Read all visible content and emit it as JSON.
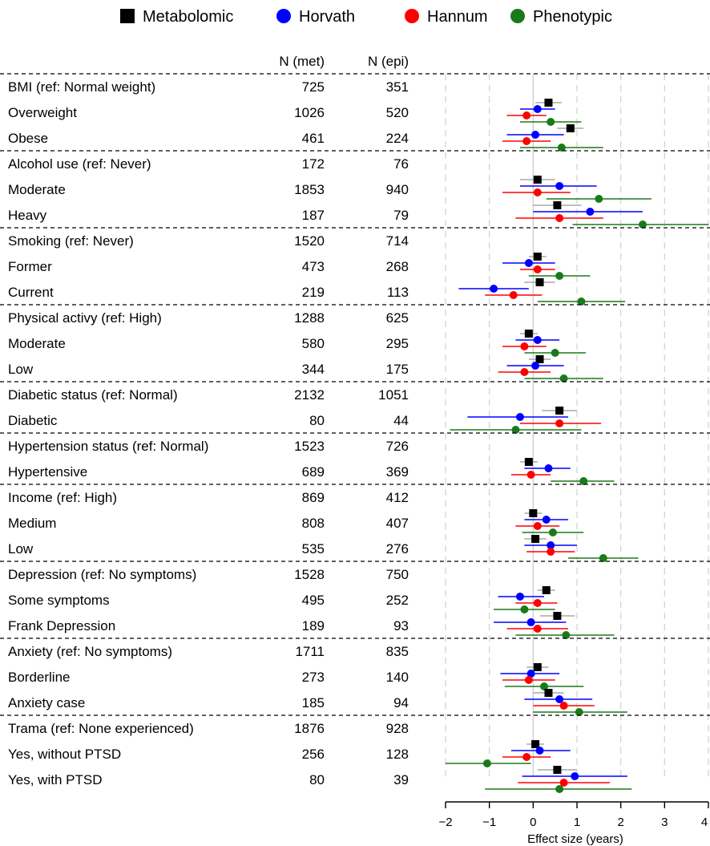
{
  "chart_data": {
    "type": "forest",
    "xlabel": "Effect size (years)",
    "xlim": [
      -2,
      4
    ],
    "xticks": [
      "−2",
      "−1",
      "0",
      "1",
      "2",
      "3",
      "4"
    ],
    "xtick_values": [
      -2,
      -1,
      0,
      1,
      2,
      3,
      4
    ],
    "grid": "dashed vertical gridlines",
    "legend_position": "top",
    "col_headers": {
      "met": "N (met)",
      "epi": "N (epi)"
    },
    "series": [
      {
        "name": "Metabolomic",
        "color": "#000000",
        "marker": "square"
      },
      {
        "name": "Horvath",
        "color": "#0000ff",
        "marker": "circle"
      },
      {
        "name": "Hannum",
        "color": "#ff0000",
        "marker": "circle"
      },
      {
        "name": "Phenotypic",
        "color": "#1a7a1a",
        "marker": "circle"
      }
    ],
    "groups": [
      {
        "ref_label": "BMI (ref: Normal weight)",
        "ref_met": "725",
        "ref_epi": "351",
        "rows": [
          {
            "label": "Overweight",
            "met": "1026",
            "epi": "520",
            "estimates": [
              [
                0.35,
                0.05,
                0.65
              ],
              [
                0.1,
                -0.3,
                0.5
              ],
              [
                -0.15,
                -0.6,
                0.3
              ],
              [
                0.4,
                -0.3,
                1.1
              ]
            ]
          },
          {
            "label": "Obese",
            "met": "461",
            "epi": "224",
            "estimates": [
              [
                0.85,
                0.55,
                1.15
              ],
              [
                0.05,
                -0.6,
                0.7
              ],
              [
                -0.15,
                -0.7,
                0.4
              ],
              [
                0.65,
                -0.3,
                1.6
              ]
            ]
          }
        ]
      },
      {
        "ref_label": "Alcohol use (ref: Never)",
        "ref_met": "172",
        "ref_epi": "76",
        "rows": [
          {
            "label": "Moderate",
            "met": "1853",
            "epi": "940",
            "estimates": [
              [
                0.1,
                -0.3,
                0.5
              ],
              [
                0.6,
                -0.3,
                1.45
              ],
              [
                0.1,
                -0.7,
                0.85
              ],
              [
                1.5,
                0.3,
                2.7
              ]
            ]
          },
          {
            "label": "Heavy",
            "met": "187",
            "epi": "79",
            "estimates": [
              [
                0.55,
                0.0,
                1.1
              ],
              [
                1.3,
                0.0,
                2.5
              ],
              [
                0.6,
                -0.4,
                1.6
              ],
              [
                2.5,
                0.9,
                4.1
              ]
            ]
          }
        ]
      },
      {
        "ref_label": "Smoking (ref: Never)",
        "ref_met": "1520",
        "ref_epi": "714",
        "rows": [
          {
            "label": "Former",
            "met": "473",
            "epi": "268",
            "estimates": [
              [
                0.1,
                -0.1,
                0.3
              ],
              [
                -0.1,
                -0.7,
                0.5
              ],
              [
                0.1,
                -0.3,
                0.5
              ],
              [
                0.6,
                -0.1,
                1.3
              ]
            ]
          },
          {
            "label": "Current",
            "met": "219",
            "epi": "113",
            "estimates": [
              [
                0.15,
                -0.2,
                0.5
              ],
              [
                -0.9,
                -1.7,
                -0.1
              ],
              [
                -0.45,
                -1.1,
                0.2
              ],
              [
                1.1,
                0.1,
                2.1
              ]
            ]
          }
        ]
      },
      {
        "ref_label": "Physical activy (ref: High)",
        "ref_met": "1288",
        "ref_epi": "625",
        "rows": [
          {
            "label": "Moderate",
            "met": "580",
            "epi": "295",
            "estimates": [
              [
                -0.1,
                -0.3,
                0.1
              ],
              [
                0.1,
                -0.4,
                0.6
              ],
              [
                -0.2,
                -0.7,
                0.3
              ],
              [
                0.5,
                -0.2,
                1.2
              ]
            ]
          },
          {
            "label": "Low",
            "met": "344",
            "epi": "175",
            "estimates": [
              [
                0.15,
                -0.1,
                0.4
              ],
              [
                0.05,
                -0.6,
                0.7
              ],
              [
                -0.2,
                -0.8,
                0.4
              ],
              [
                0.7,
                -0.2,
                1.6
              ]
            ]
          }
        ]
      },
      {
        "ref_label": "Diabetic status (ref: Normal)",
        "ref_met": "2132",
        "ref_epi": "1051",
        "rows": [
          {
            "label": "Diabetic",
            "met": "80",
            "epi": "44",
            "estimates": [
              [
                0.6,
                0.2,
                1.0
              ],
              [
                -0.3,
                -1.5,
                0.8
              ],
              [
                0.6,
                -0.3,
                1.55
              ],
              [
                -0.4,
                -1.9,
                1.1
              ]
            ]
          }
        ]
      },
      {
        "ref_label": "Hypertension status (ref: Normal)",
        "ref_met": "1523",
        "ref_epi": "726",
        "rows": [
          {
            "label": "Hypertensive",
            "met": "689",
            "epi": "369",
            "estimates": [
              [
                -0.1,
                -0.3,
                0.1
              ],
              [
                0.35,
                -0.2,
                0.85
              ],
              [
                -0.05,
                -0.5,
                0.4
              ],
              [
                1.15,
                0.4,
                1.85
              ]
            ]
          }
        ]
      },
      {
        "ref_label": "Income (ref: High)",
        "ref_met": "869",
        "ref_epi": "412",
        "rows": [
          {
            "label": "Medium",
            "met": "808",
            "epi": "407",
            "estimates": [
              [
                0.0,
                -0.2,
                0.2
              ],
              [
                0.3,
                -0.2,
                0.8
              ],
              [
                0.1,
                -0.4,
                0.6
              ],
              [
                0.45,
                -0.25,
                1.15
              ]
            ]
          },
          {
            "label": "Low",
            "met": "535",
            "epi": "276",
            "estimates": [
              [
                0.05,
                -0.2,
                0.3
              ],
              [
                0.4,
                -0.2,
                1.0
              ],
              [
                0.4,
                -0.15,
                0.95
              ],
              [
                1.6,
                0.8,
                2.4
              ]
            ]
          }
        ]
      },
      {
        "ref_label": "Depression (ref: No symptoms)",
        "ref_met": "1528",
        "ref_epi": "750",
        "rows": [
          {
            "label": "Some symptoms",
            "met": "495",
            "epi": "252",
            "estimates": [
              [
                0.3,
                0.1,
                0.5
              ],
              [
                -0.3,
                -0.8,
                0.25
              ],
              [
                0.1,
                -0.4,
                0.55
              ],
              [
                -0.2,
                -0.9,
                0.5
              ]
            ]
          },
          {
            "label": "Frank Depression",
            "met": "189",
            "epi": "93",
            "estimates": [
              [
                0.55,
                0.15,
                0.95
              ],
              [
                -0.05,
                -0.9,
                0.75
              ],
              [
                0.1,
                -0.6,
                0.8
              ],
              [
                0.75,
                -0.4,
                1.85
              ]
            ]
          }
        ]
      },
      {
        "ref_label": "Anxiety (ref: No symptoms)",
        "ref_met": "1711",
        "ref_epi": "835",
        "rows": [
          {
            "label": "Borderline",
            "met": "273",
            "epi": "140",
            "estimates": [
              [
                0.1,
                -0.15,
                0.35
              ],
              [
                -0.05,
                -0.75,
                0.6
              ],
              [
                -0.1,
                -0.7,
                0.5
              ],
              [
                0.25,
                -0.65,
                1.15
              ]
            ]
          },
          {
            "label": "Anxiety case",
            "met": "185",
            "epi": "94",
            "estimates": [
              [
                0.35,
                0.0,
                0.7
              ],
              [
                0.6,
                -0.2,
                1.35
              ],
              [
                0.7,
                0.0,
                1.4
              ],
              [
                1.05,
                0.0,
                2.15
              ]
            ]
          }
        ]
      },
      {
        "ref_label": "Trama (ref: None experienced)",
        "ref_met": "1876",
        "ref_epi": "928",
        "rows": [
          {
            "label": "Yes, without PTSD",
            "met": "256",
            "epi": "128",
            "estimates": [
              [
                0.05,
                -0.15,
                0.25
              ],
              [
                0.15,
                -0.5,
                0.85
              ],
              [
                -0.15,
                -0.7,
                0.4
              ],
              [
                -1.05,
                -2.0,
                -0.05
              ]
            ]
          },
          {
            "label": "Yes, with PTSD",
            "met": "80",
            "epi": "39",
            "estimates": [
              [
                0.55,
                0.1,
                1.0
              ],
              [
                0.95,
                -0.25,
                2.15
              ],
              [
                0.7,
                -0.35,
                1.75
              ],
              [
                0.6,
                -1.1,
                2.25
              ]
            ]
          }
        ]
      }
    ]
  }
}
